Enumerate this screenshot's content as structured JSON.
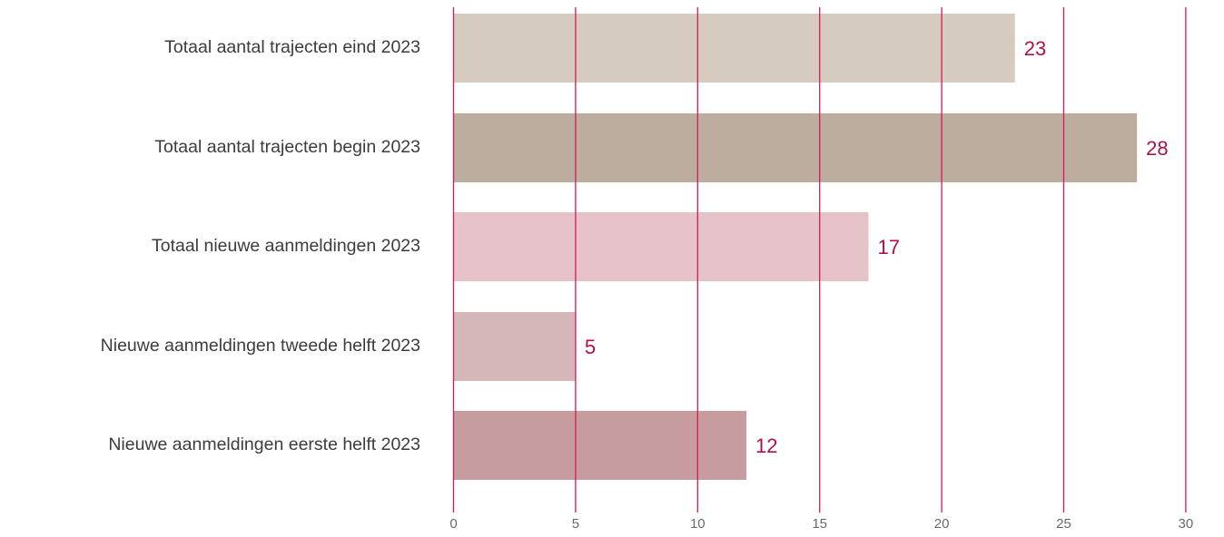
{
  "chart_data": {
    "type": "bar",
    "orientation": "horizontal",
    "categories": [
      "Totaal aantal trajecten eind 2023",
      "Totaal aantal trajecten begin 2023",
      "Totaal nieuwe aanmeldingen 2023",
      "Nieuwe aanmeldingen tweede helft 2023",
      "Nieuwe aanmeldingen eerste helft 2023"
    ],
    "values": [
      23,
      28,
      17,
      5,
      12
    ],
    "value_labels": [
      "23",
      "28",
      "17",
      "5",
      "12"
    ],
    "bar_colors": [
      "#d5cbbf",
      "#bcad9f",
      "#e5c3c9",
      "#d5b6b9",
      "#c69ca1"
    ],
    "xlim": [
      0,
      30
    ],
    "x_ticks": [
      0,
      5,
      10,
      15,
      20,
      25,
      30
    ],
    "x_tick_labels": [
      "0",
      "5",
      "10",
      "15",
      "20",
      "25",
      "30"
    ],
    "grid": true,
    "legend": "none",
    "title": "",
    "xlabel": "",
    "ylabel": "",
    "colors": {
      "gridline": "#d6195a",
      "value_label": "#b0104c",
      "category_label": "#3c3c3c",
      "tick_label": "#6a6a6a"
    }
  }
}
